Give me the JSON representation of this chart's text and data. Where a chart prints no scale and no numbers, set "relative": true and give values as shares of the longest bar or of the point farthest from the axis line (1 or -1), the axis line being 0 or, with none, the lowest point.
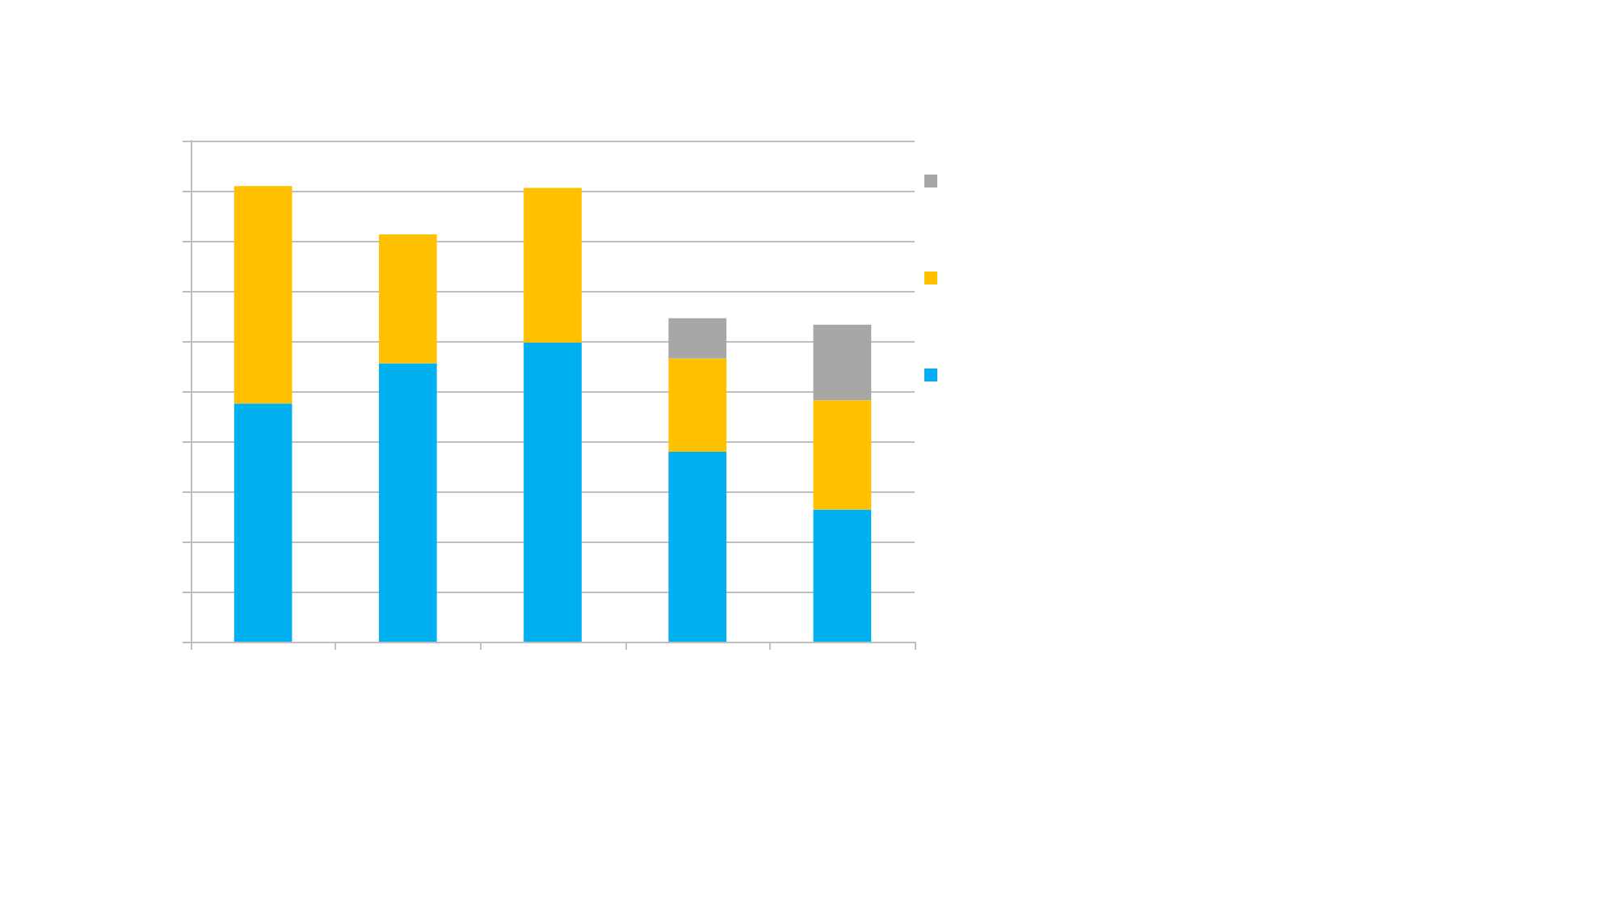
{
  "chart_data": {
    "type": "bar",
    "stacked": true,
    "relative": true,
    "grid": "y",
    "categories": [
      null,
      null,
      null,
      null,
      null
    ],
    "series": [
      {
        "color": "#00b0f0",
        "values": [
          0.523,
          0.611,
          0.657,
          0.417,
          0.29
        ]
      },
      {
        "color": "#ffc000",
        "values": [
          0.477,
          0.283,
          0.339,
          0.205,
          0.24
        ]
      },
      {
        "color": "#a6a6a6",
        "values": [
          null,
          null,
          null,
          0.088,
          0.166
        ]
      }
    ]
  }
}
